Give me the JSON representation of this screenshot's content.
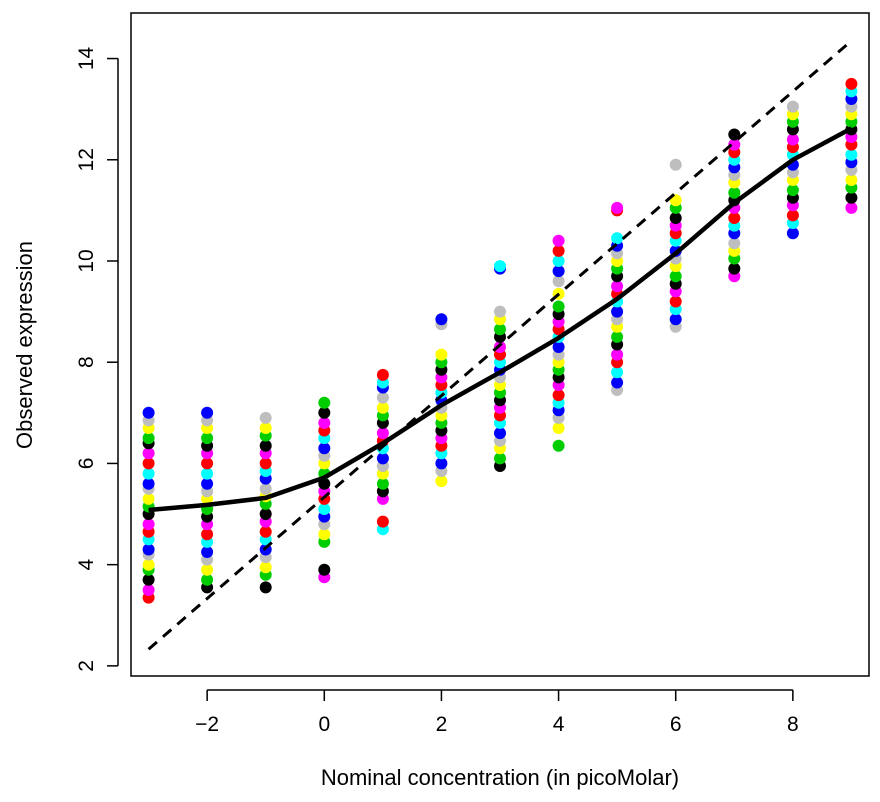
{
  "chart_data": {
    "type": "scatter",
    "title": "",
    "xlabel": "Nominal concentration (in picoMolar)",
    "ylabel": "Observed expression",
    "xlim": [
      -3.3,
      9.3
    ],
    "ylim": [
      1.8,
      14.9
    ],
    "x_ticks": [
      -2,
      0,
      2,
      4,
      6,
      8
    ],
    "y_ticks": [
      2,
      4,
      6,
      8,
      10,
      12,
      14
    ],
    "x_tick_labels": [
      "−2",
      "0",
      "2",
      "4",
      "6",
      "8"
    ],
    "y_tick_labels": [
      "2",
      "4",
      "6",
      "8",
      "10",
      "12",
      "14"
    ],
    "grid": false,
    "point_colors": [
      "#ff0000",
      "#00cd00",
      "#0000ff",
      "#ff00ff",
      "#ffff00",
      "#00ffff",
      "#000000",
      "#bebebe"
    ],
    "points_by_x": [
      {
        "x": -3,
        "y": [
          3.35,
          3.5,
          3.7,
          3.9,
          4.0,
          4.2,
          4.3,
          4.5,
          4.65,
          4.8,
          5.0,
          5.15,
          5.3,
          5.5,
          5.6,
          5.8,
          6.0,
          6.2,
          6.4,
          6.5,
          6.7,
          6.85,
          7.0
        ]
      },
      {
        "x": -2,
        "y": [
          3.55,
          3.7,
          3.9,
          4.1,
          4.25,
          4.45,
          4.6,
          4.8,
          4.95,
          5.1,
          5.3,
          5.45,
          5.6,
          5.8,
          6.0,
          6.2,
          6.35,
          6.5,
          6.7,
          6.85,
          7.0
        ]
      },
      {
        "x": -1,
        "y": [
          3.55,
          3.8,
          3.95,
          4.15,
          4.3,
          4.5,
          4.65,
          4.85,
          5.0,
          5.2,
          5.35,
          5.5,
          5.7,
          5.85,
          6.0,
          6.2,
          6.35,
          6.55,
          6.7,
          6.9
        ]
      },
      {
        "x": 0,
        "y": [
          3.75,
          3.9,
          4.45,
          4.6,
          4.8,
          4.95,
          5.1,
          5.3,
          5.45,
          5.6,
          5.8,
          6.0,
          6.15,
          6.3,
          6.5,
          6.65,
          6.8,
          7.0,
          7.2
        ]
      },
      {
        "x": 1,
        "y": [
          4.7,
          4.85,
          5.3,
          5.45,
          5.6,
          5.8,
          5.95,
          6.1,
          6.3,
          6.45,
          6.6,
          6.8,
          6.95,
          7.1,
          7.3,
          7.5,
          7.6,
          7.75
        ]
      },
      {
        "x": 2,
        "y": [
          5.65,
          5.85,
          6.0,
          6.2,
          6.35,
          6.5,
          6.65,
          6.8,
          6.95,
          7.1,
          7.25,
          7.4,
          7.55,
          7.7,
          7.85,
          8.0,
          8.15,
          8.75,
          8.85
        ]
      },
      {
        "x": 3,
        "y": [
          5.95,
          6.1,
          6.3,
          6.45,
          6.6,
          6.8,
          6.95,
          7.1,
          7.25,
          7.4,
          7.55,
          7.7,
          7.85,
          8.0,
          8.15,
          8.3,
          8.5,
          8.65,
          8.85,
          9.0,
          9.85,
          9.9
        ]
      },
      {
        "x": 4,
        "y": [
          6.35,
          6.7,
          6.9,
          7.05,
          7.2,
          7.35,
          7.55,
          7.7,
          7.85,
          8.0,
          8.15,
          8.3,
          8.5,
          8.65,
          8.8,
          8.95,
          9.1,
          9.35,
          9.6,
          9.8,
          10.0,
          10.2,
          10.4
        ]
      },
      {
        "x": 5,
        "y": [
          7.45,
          7.6,
          7.8,
          8.0,
          8.15,
          8.35,
          8.5,
          8.7,
          8.85,
          9.0,
          9.2,
          9.35,
          9.5,
          9.7,
          9.85,
          10.0,
          10.15,
          10.3,
          10.45,
          11.0,
          11.05
        ]
      },
      {
        "x": 6,
        "y": [
          8.7,
          8.85,
          9.05,
          9.2,
          9.4,
          9.55,
          9.7,
          9.9,
          10.05,
          10.2,
          10.4,
          10.55,
          10.7,
          10.85,
          11.05,
          11.2,
          11.9
        ]
      },
      {
        "x": 7,
        "y": [
          9.7,
          9.85,
          10.05,
          10.2,
          10.35,
          10.55,
          10.7,
          10.85,
          11.05,
          11.2,
          11.35,
          11.55,
          11.7,
          11.85,
          12.0,
          12.15,
          12.3,
          12.5
        ]
      },
      {
        "x": 8,
        "y": [
          10.55,
          10.75,
          10.9,
          11.1,
          11.25,
          11.4,
          11.6,
          11.75,
          11.9,
          12.1,
          12.25,
          12.4,
          12.6,
          12.75,
          12.9,
          13.05
        ]
      },
      {
        "x": 9,
        "y": [
          11.05,
          11.25,
          11.45,
          11.6,
          11.8,
          11.95,
          12.1,
          12.3,
          12.45,
          12.6,
          12.75,
          12.9,
          13.05,
          13.2,
          13.35,
          13.5
        ]
      }
    ],
    "fit_line": {
      "style": "solid",
      "x": [
        -3,
        -2,
        -1,
        0,
        1,
        2,
        3,
        4,
        5,
        6,
        7,
        8,
        9
      ],
      "y": [
        5.08,
        5.18,
        5.32,
        5.72,
        6.4,
        7.15,
        7.8,
        8.48,
        9.25,
        10.15,
        11.15,
        12.0,
        12.62
      ]
    },
    "reference_line": {
      "style": "dashed",
      "x": [
        -3,
        9
      ],
      "y": [
        2.33,
        14.35
      ]
    }
  }
}
